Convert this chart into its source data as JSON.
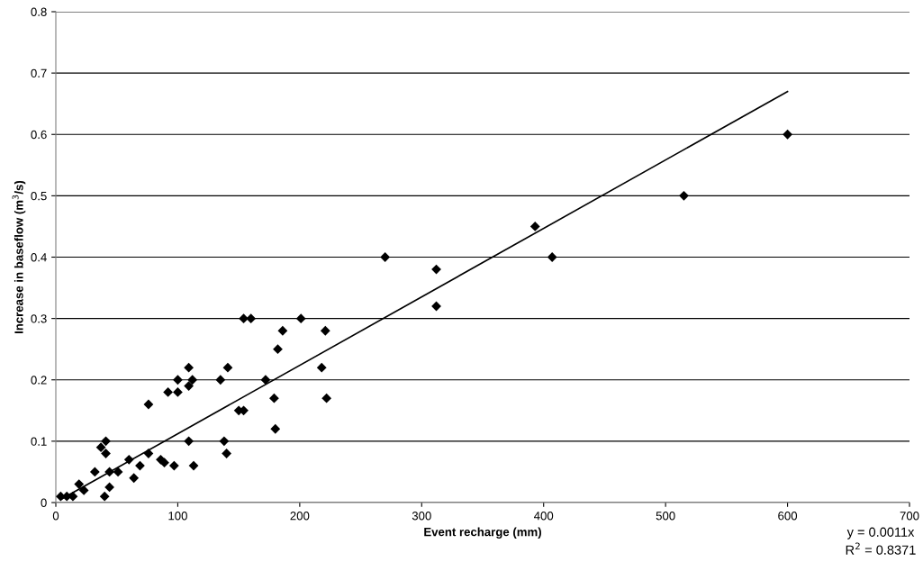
{
  "chart_data": {
    "type": "scatter",
    "xlabel": "Event recharge (mm)",
    "ylabel": "Increase in baseflow (m$^{3}$/s)",
    "xlim": [
      0,
      700
    ],
    "xticks": [
      0,
      100,
      200,
      300,
      400,
      500,
      600,
      700
    ],
    "ylim": [
      0,
      0.8
    ],
    "yticks": [
      0,
      0.1,
      0.2,
      0.3,
      0.4,
      0.5,
      0.6,
      0.7,
      0.8
    ],
    "grid": "y",
    "legend": false,
    "series": [
      {
        "color": "#000000",
        "marker": "diamond",
        "x": [
          4,
          9,
          14,
          19,
          23,
          32,
          37,
          40,
          41,
          41,
          44,
          44,
          51,
          60,
          64,
          69,
          76,
          76,
          86,
          89,
          97,
          92,
          100,
          100,
          109,
          109,
          112,
          109,
          113,
          135,
          141,
          138,
          140,
          154,
          160,
          201,
          186,
          221,
          182,
          172,
          218,
          179,
          222,
          150,
          154,
          180,
          600,
          515,
          393,
          407,
          270,
          312,
          312
        ],
        "values": [
          0.01,
          0.01,
          0.01,
          0.03,
          0.02,
          0.05,
          0.09,
          0.01,
          0.1,
          0.08,
          0.05,
          0.025,
          0.05,
          0.07,
          0.04,
          0.06,
          0.16,
          0.08,
          0.07,
          0.065,
          0.06,
          0.18,
          0.18,
          0.2,
          0.22,
          0.19,
          0.2,
          0.1,
          0.06,
          0.2,
          0.22,
          0.1,
          0.08,
          0.3,
          0.3,
          0.3,
          0.28,
          0.28,
          0.25,
          0.2,
          0.22,
          0.17,
          0.17,
          0.15,
          0.15,
          0.12,
          0.6,
          0.5,
          0.45,
          0.4,
          0.4,
          0.38,
          0.32
        ]
      },
      {
        "type": "line",
        "color": "#000000",
        "marker": "none",
        "line_style": "solid",
        "x": [
          4,
          600
        ],
        "values": [
          0.005,
          0.67
        ]
      }
    ],
    "annotations": [
      "y = 0.0011x",
      "R$^{2}$ = 0.8371"
    ]
  }
}
